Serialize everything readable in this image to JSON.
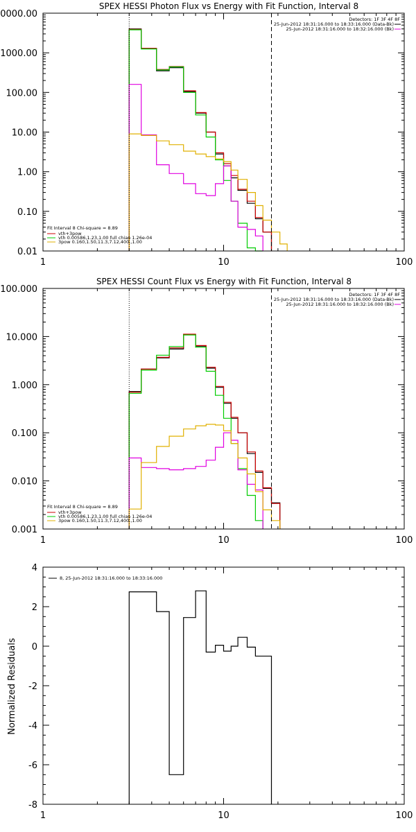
{
  "chart_data": [
    {
      "type": "line",
      "title": "SPEX HESSI Photon Flux vs Energy with Fit Function, Interval 8",
      "xscale": "log",
      "yscale": "log",
      "xlim": [
        1,
        100
      ],
      "ylim": [
        0.01,
        10000
      ],
      "x_ticks": [
        "1",
        "10",
        "100"
      ],
      "y_ticks": [
        "0.01",
        "0.10",
        "1.00",
        "10.00",
        "100.00",
        "1000.00",
        "10000.00"
      ],
      "info": {
        "detectors": "Detectors: 1F 3F 4F 8F",
        "time1": "25-Jun-2012 18:31:16.000 to 18:33:16.000 (Data-Bk)",
        "time2": "25-Jun-2012 18:31:16.000 to 18:32:16.000 (Bk)"
      },
      "legend": {
        "heading": "Fit Interval 8   Chi-square = 8.89",
        "entries": [
          "vth+3pow",
          "vth 0.00586,1.23,1.00  full chian 1.26e-04",
          "3pow 0.160,1.50,11.3,7.12,400.,1.00"
        ]
      },
      "vlines": [
        {
          "x": 3.0,
          "style": "dotted",
          "color": "#000000"
        },
        {
          "x": 18.4,
          "style": "dashed",
          "color": "#000000"
        }
      ],
      "edges": [
        3.0,
        3.5,
        4.25,
        5.0,
        6.0,
        7.0,
        8.0,
        9.0,
        10.0,
        11.0,
        12.0,
        13.5,
        15.0,
        16.5,
        18.4,
        20.5,
        22.5
      ],
      "series": [
        {
          "style": "step",
          "color": "#000000",
          "values": [
            4000,
            1300,
            350,
            420,
            105,
            30,
            10,
            2.8,
            1.4,
            0.7,
            0.34,
            0.16,
            0.065,
            0.03,
            null,
            null
          ]
        },
        {
          "style": "step",
          "color": "#cc0000",
          "values": [
            3900,
            1300,
            380,
            450,
            110,
            31,
            10,
            3.0,
            1.6,
            0.8,
            0.36,
            0.18,
            0.07,
            0.03,
            null,
            null
          ]
        },
        {
          "style": "step",
          "color": "#00cc00",
          "values": [
            3800,
            1250,
            370,
            440,
            100,
            27,
            7.5,
            2.0,
            0.6,
            0.18,
            0.05,
            0.012,
            0.003,
            null,
            null,
            null
          ]
        },
        {
          "style": "step",
          "color": "#e000e0",
          "values": [
            160,
            8.5,
            1.5,
            0.9,
            0.5,
            0.28,
            0.25,
            0.5,
            1.4,
            0.18,
            0.04,
            0.035,
            0.024,
            null,
            null,
            null
          ]
        },
        {
          "style": "step",
          "color": "#e0b000",
          "values": [
            9.0,
            8.2,
            6.0,
            4.8,
            3.3,
            2.8,
            2.4,
            2.1,
            1.8,
            1.1,
            0.64,
            0.3,
            0.14,
            0.06,
            0.03,
            0.015
          ]
        }
      ]
    },
    {
      "type": "line",
      "title": "SPEX HESSI Count Flux vs Energy with Fit Function, Interval 8",
      "xscale": "log",
      "yscale": "log",
      "xlim": [
        1,
        100
      ],
      "ylim": [
        0.001,
        100
      ],
      "x_ticks": [
        "1",
        "10",
        "100"
      ],
      "y_ticks": [
        "0.001",
        "0.010",
        "0.100",
        "1.000",
        "10.000",
        "100.000"
      ],
      "info": {
        "detectors": "Detectors: 1F 3F 4F 8F",
        "time1": "25-Jun-2012 18:31:16.000 to 18:33:16.000 (Data-Bk)",
        "time2": "25-Jun-2012 18:31:16.000 to 18:32:16.000 (Bk)"
      },
      "legend": {
        "heading": "Fit Interval 8   Chi-square = 8.89",
        "entries": [
          "vth+3pow",
          "vth 0.00586,1.23,1.00  full chian 1.26e-04",
          "3pow 0.160,1.50,11.3,7.12,400.,1.00"
        ]
      },
      "vlines": [
        {
          "x": 3.0,
          "style": "dotted",
          "color": "#000000"
        },
        {
          "x": 18.4,
          "style": "dashed",
          "color": "#000000"
        }
      ],
      "edges": [
        3.0,
        3.5,
        4.25,
        5.0,
        6.0,
        7.0,
        8.0,
        9.0,
        10.0,
        11.0,
        12.0,
        13.5,
        15.0,
        16.5,
        18.4,
        20.5,
        22.5
      ],
      "series": [
        {
          "style": "step",
          "color": "#000000",
          "values": [
            0.72,
            2.1,
            3.6,
            5.5,
            11.0,
            6.3,
            2.2,
            0.88,
            0.41,
            0.2,
            0.1,
            0.037,
            0.015,
            0.007,
            0.0035,
            null
          ]
        },
        {
          "style": "step",
          "color": "#cc0000",
          "values": [
            0.7,
            2.1,
            3.7,
            5.8,
            11.2,
            6.5,
            2.3,
            0.92,
            0.43,
            0.21,
            0.1,
            0.04,
            0.016,
            0.0072,
            0.0034,
            null
          ]
        },
        {
          "style": "step",
          "color": "#00cc00",
          "values": [
            0.66,
            2.0,
            4.1,
            6.2,
            10.8,
            6.0,
            1.9,
            0.6,
            0.2,
            0.06,
            0.018,
            0.005,
            0.0015,
            null,
            null,
            null
          ]
        },
        {
          "style": "step",
          "color": "#e000e0",
          "values": [
            0.03,
            0.019,
            0.018,
            0.017,
            0.018,
            0.02,
            0.027,
            0.05,
            0.1,
            0.07,
            0.017,
            0.0085,
            0.0065,
            null,
            null,
            null
          ]
        },
        {
          "style": "step",
          "color": "#e0b000",
          "values": [
            0.0026,
            0.024,
            0.052,
            0.085,
            0.12,
            0.14,
            0.15,
            0.145,
            0.11,
            0.06,
            0.03,
            0.014,
            0.006,
            0.0025,
            0.0015,
            null
          ]
        }
      ]
    },
    {
      "type": "line",
      "title": "",
      "xscale": "log",
      "yscale": "linear",
      "xlim": [
        1,
        100
      ],
      "ylim": [
        -8,
        4
      ],
      "ylabel": "Normalized Residuals",
      "x_ticks": [
        "1",
        "10",
        "100"
      ],
      "y_ticks": [
        "-8",
        "-6",
        "-4",
        "-2",
        "0",
        "2",
        "4"
      ],
      "legend": {
        "heading": "",
        "entries": [
          "8, 25-Jun-2012 18:31:16.000 to 18:33:16.000"
        ]
      },
      "edges": [
        3.0,
        3.5,
        4.25,
        5.0,
        6.0,
        7.0,
        8.0,
        9.0,
        10.0,
        11.0,
        12.0,
        13.5,
        15.0,
        16.5,
        18.4
      ],
      "series": [
        {
          "style": "step",
          "color": "#000000",
          "values": [
            2.75,
            2.75,
            1.75,
            -6.5,
            1.45,
            2.8,
            -0.3,
            0.05,
            -0.25,
            0.0,
            0.45,
            -0.05,
            -0.5,
            -0.5
          ]
        }
      ]
    }
  ]
}
